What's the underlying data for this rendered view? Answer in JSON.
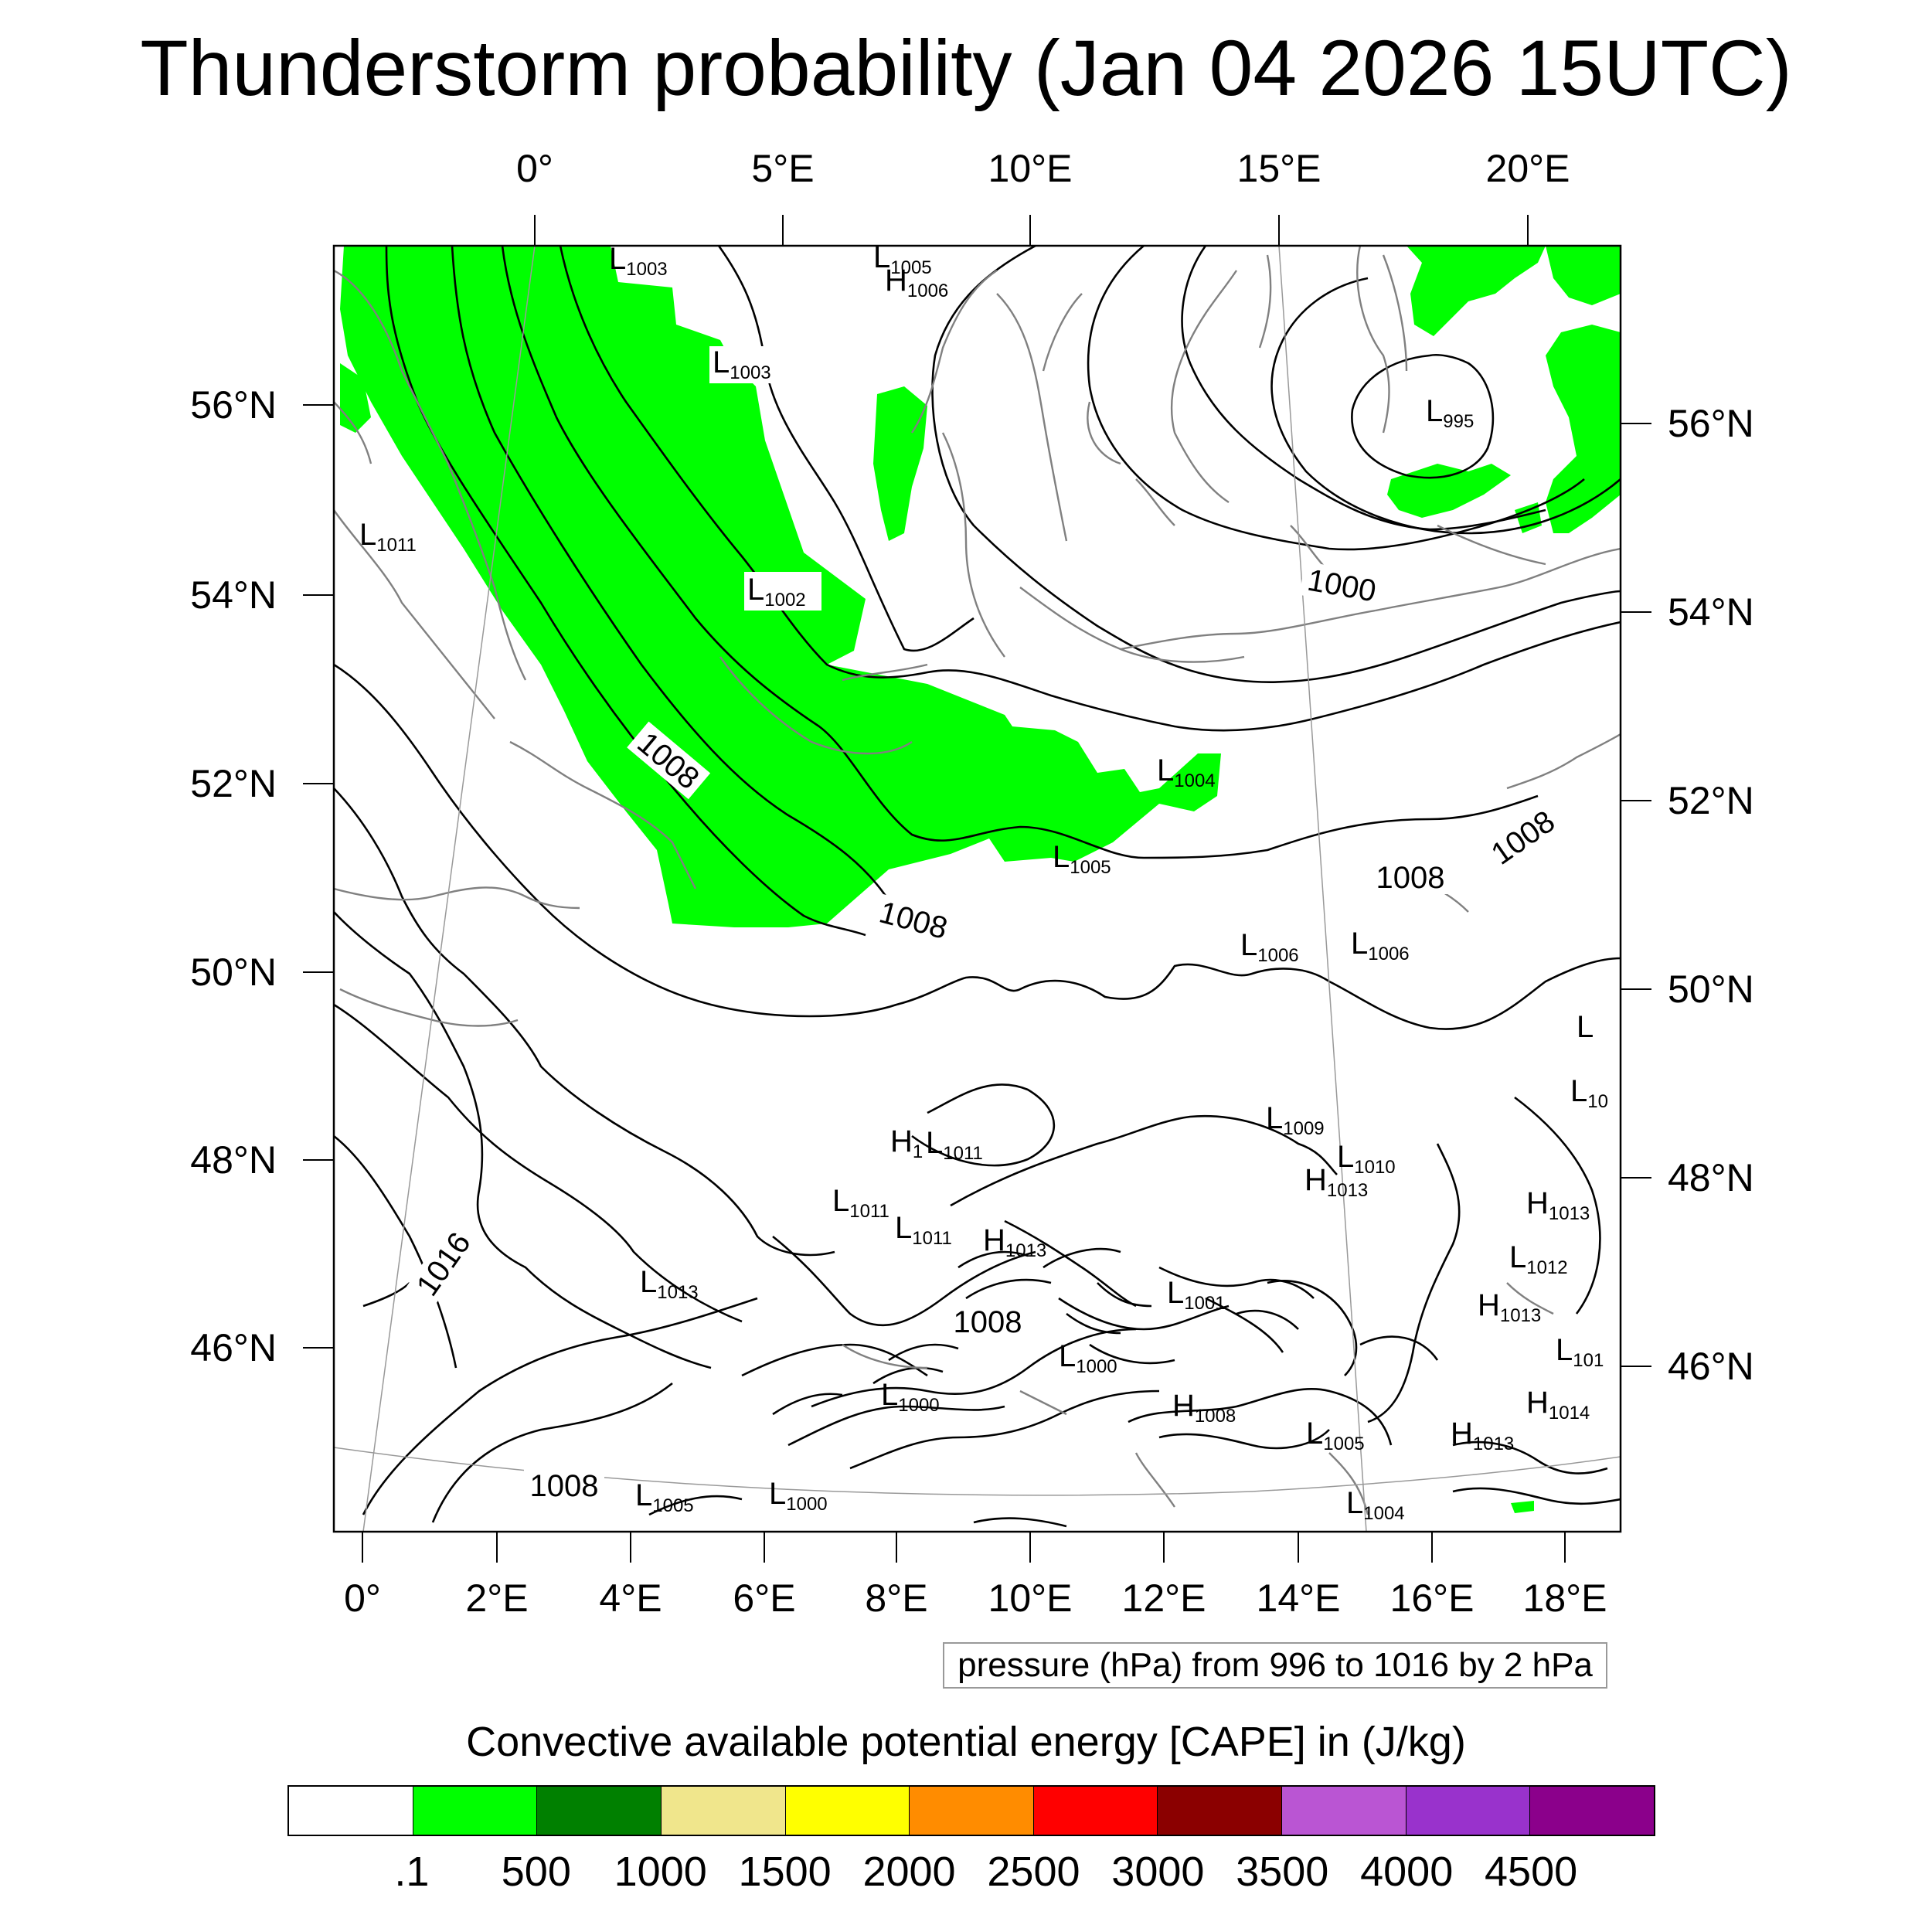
{
  "title": "Thunderstorm probability (Jan 04 2026 15UTC)",
  "axes": {
    "top_lon_labels": [
      "0°",
      "5°E",
      "10°E",
      "15°E",
      "20°E"
    ],
    "bottom_lon_labels": [
      "0°",
      "2°E",
      "4°E",
      "6°E",
      "8°E",
      "10°E",
      "12°E",
      "14°E",
      "16°E",
      "18°E"
    ],
    "left_lat_labels": [
      "56°N",
      "54°N",
      "52°N",
      "50°N",
      "48°N",
      "46°N"
    ],
    "right_lat_labels": [
      "56°N",
      "54°N",
      "52°N",
      "50°N",
      "48°N",
      "46°N"
    ]
  },
  "contour_caption": "pressure (hPa) from 996 to 1016 by 2 hPa",
  "pressure_labels": {
    "contour_values": [
      "1008",
      "1008",
      "1000",
      "1008",
      "1008",
      "1016",
      "1008",
      "1008"
    ],
    "centers": [
      {
        "kind": "L",
        "value": "1003"
      },
      {
        "kind": "L",
        "value": "1005"
      },
      {
        "kind": "H",
        "value": "1006"
      },
      {
        "kind": "L",
        "value": "1003"
      },
      {
        "kind": "L",
        "value": "995"
      },
      {
        "kind": "L",
        "value": "1011"
      },
      {
        "kind": "L",
        "value": "1002"
      },
      {
        "kind": "L",
        "value": "1004"
      },
      {
        "kind": "L",
        "value": "1005"
      },
      {
        "kind": "L",
        "value": "1006"
      },
      {
        "kind": "L",
        "value": "1006"
      },
      {
        "kind": "L",
        "value": "1009"
      },
      {
        "kind": "H",
        "value": "1"
      },
      {
        "kind": "L",
        "value": "1011"
      },
      {
        "kind": "L",
        "value": "1010"
      },
      {
        "kind": "H",
        "value": "1013"
      },
      {
        "kind": "L",
        "value": "1011"
      },
      {
        "kind": "L",
        "value": "1011"
      },
      {
        "kind": "H",
        "value": "1013"
      },
      {
        "kind": "H",
        "value": "1013"
      },
      {
        "kind": "L",
        "value": "1012"
      },
      {
        "kind": "L",
        "value": "1013"
      },
      {
        "kind": "L",
        "value": "1001"
      },
      {
        "kind": "H",
        "value": "1013"
      },
      {
        "kind": "L",
        "value": "1000"
      },
      {
        "kind": "L",
        "value": "1000"
      },
      {
        "kind": "H",
        "value": "1008"
      },
      {
        "kind": "H",
        "value": "1014"
      },
      {
        "kind": "L",
        "value": "1005"
      },
      {
        "kind": "H",
        "value": "1013"
      },
      {
        "kind": "L",
        "value": "1005"
      },
      {
        "kind": "L",
        "value": "1000"
      },
      {
        "kind": "L",
        "value": "1004"
      },
      {
        "kind": "L",
        "value": "101"
      },
      {
        "kind": "L",
        "value": "10"
      },
      {
        "kind": "L",
        "value": ""
      }
    ]
  },
  "colorbar": {
    "title": "Convective available potential energy [CAPE] in (J/kg)",
    "colors": [
      "#ffffff",
      "#00ff00",
      "#008000",
      "#f0e68c",
      "#ffff00",
      "#ff8c00",
      "#ff0000",
      "#8b0000",
      "#ba55d3",
      "#9932cc",
      "#8b008b"
    ],
    "labels": [
      ".1",
      "500",
      "1000",
      "1500",
      "2000",
      "2500",
      "3000",
      "3500",
      "4000",
      "4500"
    ]
  },
  "colors": {
    "cape_fill": "#00ff00",
    "isobar": "#000000",
    "coastline": "#808080"
  }
}
